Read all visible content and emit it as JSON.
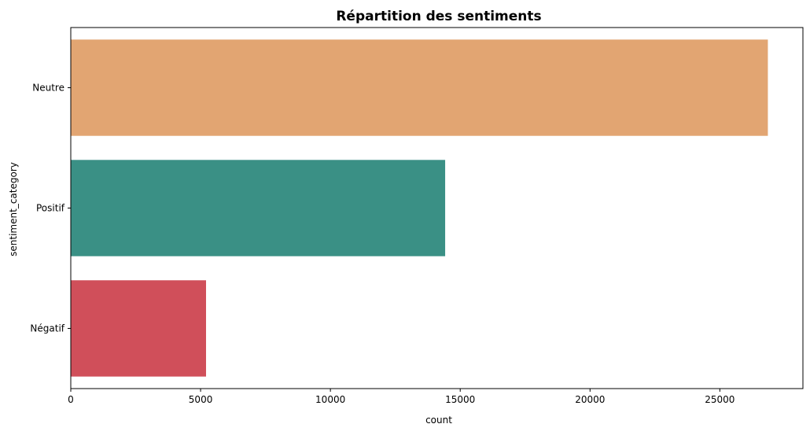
{
  "chart_data": {
    "type": "bar",
    "orientation": "horizontal",
    "title": "Répartition des sentiments",
    "xlabel": "count",
    "ylabel": "sentiment_category",
    "categories": [
      "Neutre",
      "Positif",
      "Négatif"
    ],
    "values": [
      26850,
      14420,
      5210
    ],
    "colors": [
      "#E2A572",
      "#3A9085",
      "#D04F5A"
    ],
    "xlim": [
      0,
      28200
    ],
    "xticks": [
      0,
      5000,
      10000,
      15000,
      20000,
      25000
    ],
    "xtick_labels": [
      "0",
      "5000",
      "10000",
      "15000",
      "20000",
      "25000"
    ],
    "grid": false,
    "legend": "none"
  }
}
